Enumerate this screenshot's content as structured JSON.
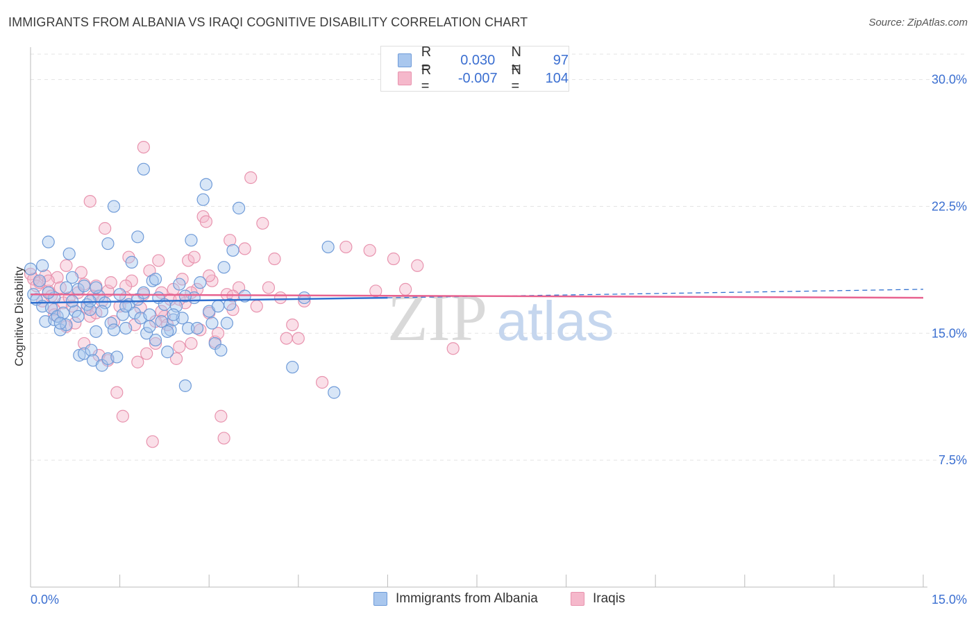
{
  "header": {
    "title": "IMMIGRANTS FROM ALBANIA VS IRAQI COGNITIVE DISABILITY CORRELATION CHART",
    "source": "Source: ZipAtlas.com"
  },
  "legend": {
    "series1": {
      "r_label": "R =",
      "r_value": "0.030",
      "n_label": "N =",
      "n_value": "97"
    },
    "series2": {
      "r_label": "R =",
      "r_value": "-0.007",
      "n_label": "N =",
      "n_value": "104"
    }
  },
  "bottom_legend": {
    "series1_label": "Immigrants from Albania",
    "series2_label": "Iraqis"
  },
  "watermark": {
    "part1": "ZIP",
    "part2": "atlas"
  },
  "colors": {
    "blue_fill": "#a9c7ee",
    "blue_stroke": "#6f9bd8",
    "blue_line": "#2f6fcf",
    "pink_fill": "#f5b8cb",
    "pink_stroke": "#e893ae",
    "pink_line": "#e8628f",
    "grid": "#e3e3e3",
    "tick_label": "#3b6fd1"
  },
  "chart_data": {
    "type": "scatter",
    "title": "IMMIGRANTS FROM ALBANIA VS IRAQI COGNITIVE DISABILITY CORRELATION CHART",
    "xlabel": "",
    "ylabel": "Cognitive Disability",
    "xlim": [
      0,
      15
    ],
    "ylim": [
      0,
      31.5
    ],
    "x_tick_labels": [
      "0.0%",
      "15.0%"
    ],
    "y_ticks": [
      7.5,
      15.0,
      22.5,
      30.0
    ],
    "y_tick_labels": [
      "7.5%",
      "15.0%",
      "22.5%",
      "30.0%"
    ],
    "grid": true,
    "series": [
      {
        "name": "Immigrants from Albania",
        "color": "#6f9bd8",
        "trend": {
          "x_start": 0.0,
          "y_start": 16.8,
          "x_end": 6.0,
          "y_end": 17.1,
          "dashed_to_x": 15.0,
          "dashed_to_y": 17.6
        },
        "points": [
          [
            0.0,
            18.8
          ],
          [
            0.05,
            17.3
          ],
          [
            0.1,
            17.0
          ],
          [
            0.15,
            18.1
          ],
          [
            0.2,
            16.6
          ],
          [
            0.25,
            15.7
          ],
          [
            0.3,
            20.4
          ],
          [
            0.35,
            16.5
          ],
          [
            0.4,
            15.8
          ],
          [
            0.45,
            16.0
          ],
          [
            0.5,
            15.2
          ],
          [
            0.55,
            16.2
          ],
          [
            0.6,
            15.5
          ],
          [
            0.65,
            19.7
          ],
          [
            0.7,
            18.3
          ],
          [
            0.75,
            16.3
          ],
          [
            0.8,
            17.6
          ],
          [
            0.82,
            13.7
          ],
          [
            0.9,
            13.8
          ],
          [
            0.95,
            16.7
          ],
          [
            1.0,
            16.4
          ],
          [
            1.02,
            14.0
          ],
          [
            1.05,
            13.4
          ],
          [
            1.1,
            15.1
          ],
          [
            1.15,
            17.2
          ],
          [
            1.2,
            13.1
          ],
          [
            1.25,
            16.8
          ],
          [
            1.3,
            13.5
          ],
          [
            1.35,
            15.6
          ],
          [
            1.4,
            22.5
          ],
          [
            1.45,
            13.6
          ],
          [
            1.5,
            17.3
          ],
          [
            1.55,
            16.1
          ],
          [
            1.6,
            15.3
          ],
          [
            1.65,
            16.7
          ],
          [
            1.7,
            19.2
          ],
          [
            1.75,
            16.2
          ],
          [
            1.8,
            17.0
          ],
          [
            1.85,
            15.9
          ],
          [
            1.9,
            17.4
          ],
          [
            1.95,
            15.0
          ],
          [
            2.0,
            16.1
          ],
          [
            2.05,
            18.1
          ],
          [
            2.1,
            14.6
          ],
          [
            2.15,
            17.1
          ],
          [
            2.2,
            15.7
          ],
          [
            2.25,
            16.7
          ],
          [
            2.3,
            13.9
          ],
          [
            2.35,
            15.2
          ],
          [
            2.4,
            15.8
          ],
          [
            2.45,
            16.6
          ],
          [
            2.5,
            17.9
          ],
          [
            2.55,
            15.9
          ],
          [
            2.6,
            11.9
          ],
          [
            2.65,
            15.3
          ],
          [
            2.7,
            20.5
          ],
          [
            2.75,
            17.1
          ],
          [
            2.8,
            15.3
          ],
          [
            2.85,
            18.0
          ],
          [
            2.9,
            22.9
          ],
          [
            2.95,
            23.8
          ],
          [
            3.0,
            16.3
          ],
          [
            3.05,
            15.6
          ],
          [
            3.1,
            14.4
          ],
          [
            3.15,
            16.6
          ],
          [
            3.2,
            14.0
          ],
          [
            3.25,
            18.9
          ],
          [
            3.3,
            15.6
          ],
          [
            3.35,
            16.7
          ],
          [
            3.4,
            19.9
          ],
          [
            3.5,
            22.4
          ],
          [
            3.6,
            17.2
          ],
          [
            4.4,
            13.0
          ],
          [
            4.6,
            17.1
          ],
          [
            5.0,
            20.1
          ],
          [
            5.1,
            11.5
          ],
          [
            1.3,
            20.3
          ],
          [
            1.8,
            20.7
          ],
          [
            1.9,
            24.7
          ],
          [
            2.1,
            18.2
          ],
          [
            0.6,
            17.7
          ],
          [
            0.7,
            16.9
          ],
          [
            0.2,
            19.0
          ],
          [
            0.4,
            17.1
          ],
          [
            1.0,
            16.9
          ],
          [
            1.1,
            17.7
          ],
          [
            2.3,
            15.1
          ],
          [
            2.6,
            17.2
          ],
          [
            0.3,
            17.4
          ],
          [
            0.5,
            15.6
          ],
          [
            0.8,
            16.0
          ],
          [
            1.2,
            16.3
          ],
          [
            1.6,
            16.6
          ],
          [
            2.0,
            15.4
          ],
          [
            2.4,
            16.1
          ],
          [
            0.9,
            17.8
          ],
          [
            1.4,
            15.2
          ]
        ]
      },
      {
        "name": "Iraqis",
        "color": "#e893ae",
        "trend": {
          "x_start": 0.0,
          "y_start": 17.3,
          "x_end": 15.0,
          "y_end": 17.1
        },
        "points": [
          [
            0.0,
            18.5
          ],
          [
            0.05,
            18.2
          ],
          [
            0.1,
            17.8
          ],
          [
            0.15,
            18.0
          ],
          [
            0.2,
            16.9
          ],
          [
            0.25,
            18.4
          ],
          [
            0.3,
            17.5
          ],
          [
            0.35,
            17.2
          ],
          [
            0.4,
            16.4
          ],
          [
            0.45,
            18.3
          ],
          [
            0.5,
            17.7
          ],
          [
            0.55,
            16.8
          ],
          [
            0.6,
            19.0
          ],
          [
            0.65,
            17.1
          ],
          [
            0.7,
            16.6
          ],
          [
            0.75,
            15.6
          ],
          [
            0.8,
            17.4
          ],
          [
            0.85,
            18.6
          ],
          [
            0.9,
            17.9
          ],
          [
            0.95,
            16.5
          ],
          [
            1.0,
            22.8
          ],
          [
            1.05,
            17.2
          ],
          [
            1.1,
            17.8
          ],
          [
            1.15,
            13.7
          ],
          [
            1.2,
            16.9
          ],
          [
            1.25,
            21.2
          ],
          [
            1.3,
            17.5
          ],
          [
            1.35,
            18.0
          ],
          [
            1.4,
            15.7
          ],
          [
            1.45,
            11.5
          ],
          [
            1.5,
            16.6
          ],
          [
            1.55,
            10.1
          ],
          [
            1.6,
            17.1
          ],
          [
            1.65,
            19.5
          ],
          [
            1.7,
            18.1
          ],
          [
            1.75,
            15.5
          ],
          [
            1.8,
            13.3
          ],
          [
            1.85,
            16.5
          ],
          [
            1.9,
            17.3
          ],
          [
            1.95,
            13.8
          ],
          [
            2.0,
            18.7
          ],
          [
            2.05,
            8.6
          ],
          [
            2.1,
            14.4
          ],
          [
            2.15,
            19.3
          ],
          [
            2.2,
            17.4
          ],
          [
            2.25,
            16.0
          ],
          [
            2.3,
            15.5
          ],
          [
            2.35,
            17.0
          ],
          [
            2.4,
            17.6
          ],
          [
            2.45,
            13.5
          ],
          [
            2.5,
            14.2
          ],
          [
            2.55,
            18.2
          ],
          [
            2.6,
            16.8
          ],
          [
            2.65,
            19.3
          ],
          [
            2.7,
            14.4
          ],
          [
            2.75,
            19.5
          ],
          [
            2.8,
            17.6
          ],
          [
            2.85,
            15.2
          ],
          [
            2.9,
            21.9
          ],
          [
            2.95,
            21.6
          ],
          [
            3.0,
            16.2
          ],
          [
            3.05,
            18.1
          ],
          [
            3.1,
            14.5
          ],
          [
            3.15,
            15.0
          ],
          [
            3.2,
            10.1
          ],
          [
            3.25,
            8.8
          ],
          [
            3.3,
            17.3
          ],
          [
            3.35,
            20.5
          ],
          [
            3.4,
            16.4
          ],
          [
            3.5,
            17.7
          ],
          [
            3.6,
            20.0
          ],
          [
            3.7,
            24.2
          ],
          [
            3.8,
            16.6
          ],
          [
            3.9,
            21.5
          ],
          [
            4.0,
            17.7
          ],
          [
            4.1,
            19.4
          ],
          [
            4.2,
            17.1
          ],
          [
            4.3,
            14.7
          ],
          [
            4.4,
            15.5
          ],
          [
            4.5,
            14.7
          ],
          [
            4.6,
            16.9
          ],
          [
            4.9,
            12.1
          ],
          [
            5.3,
            20.1
          ],
          [
            5.7,
            19.9
          ],
          [
            5.8,
            17.5
          ],
          [
            6.1,
            19.4
          ],
          [
            6.3,
            17.6
          ],
          [
            6.5,
            19.0
          ],
          [
            7.1,
            14.1
          ],
          [
            1.9,
            26.0
          ],
          [
            2.2,
            16.3
          ],
          [
            1.0,
            16.0
          ],
          [
            1.3,
            13.4
          ],
          [
            0.9,
            14.4
          ],
          [
            3.0,
            18.4
          ],
          [
            2.7,
            17.4
          ],
          [
            0.3,
            18.1
          ],
          [
            0.6,
            15.4
          ],
          [
            1.6,
            17.8
          ],
          [
            1.1,
            16.2
          ],
          [
            0.4,
            16.1
          ],
          [
            3.4,
            17.2
          ],
          [
            2.1,
            15.7
          ],
          [
            2.5,
            17.0
          ]
        ]
      }
    ]
  }
}
